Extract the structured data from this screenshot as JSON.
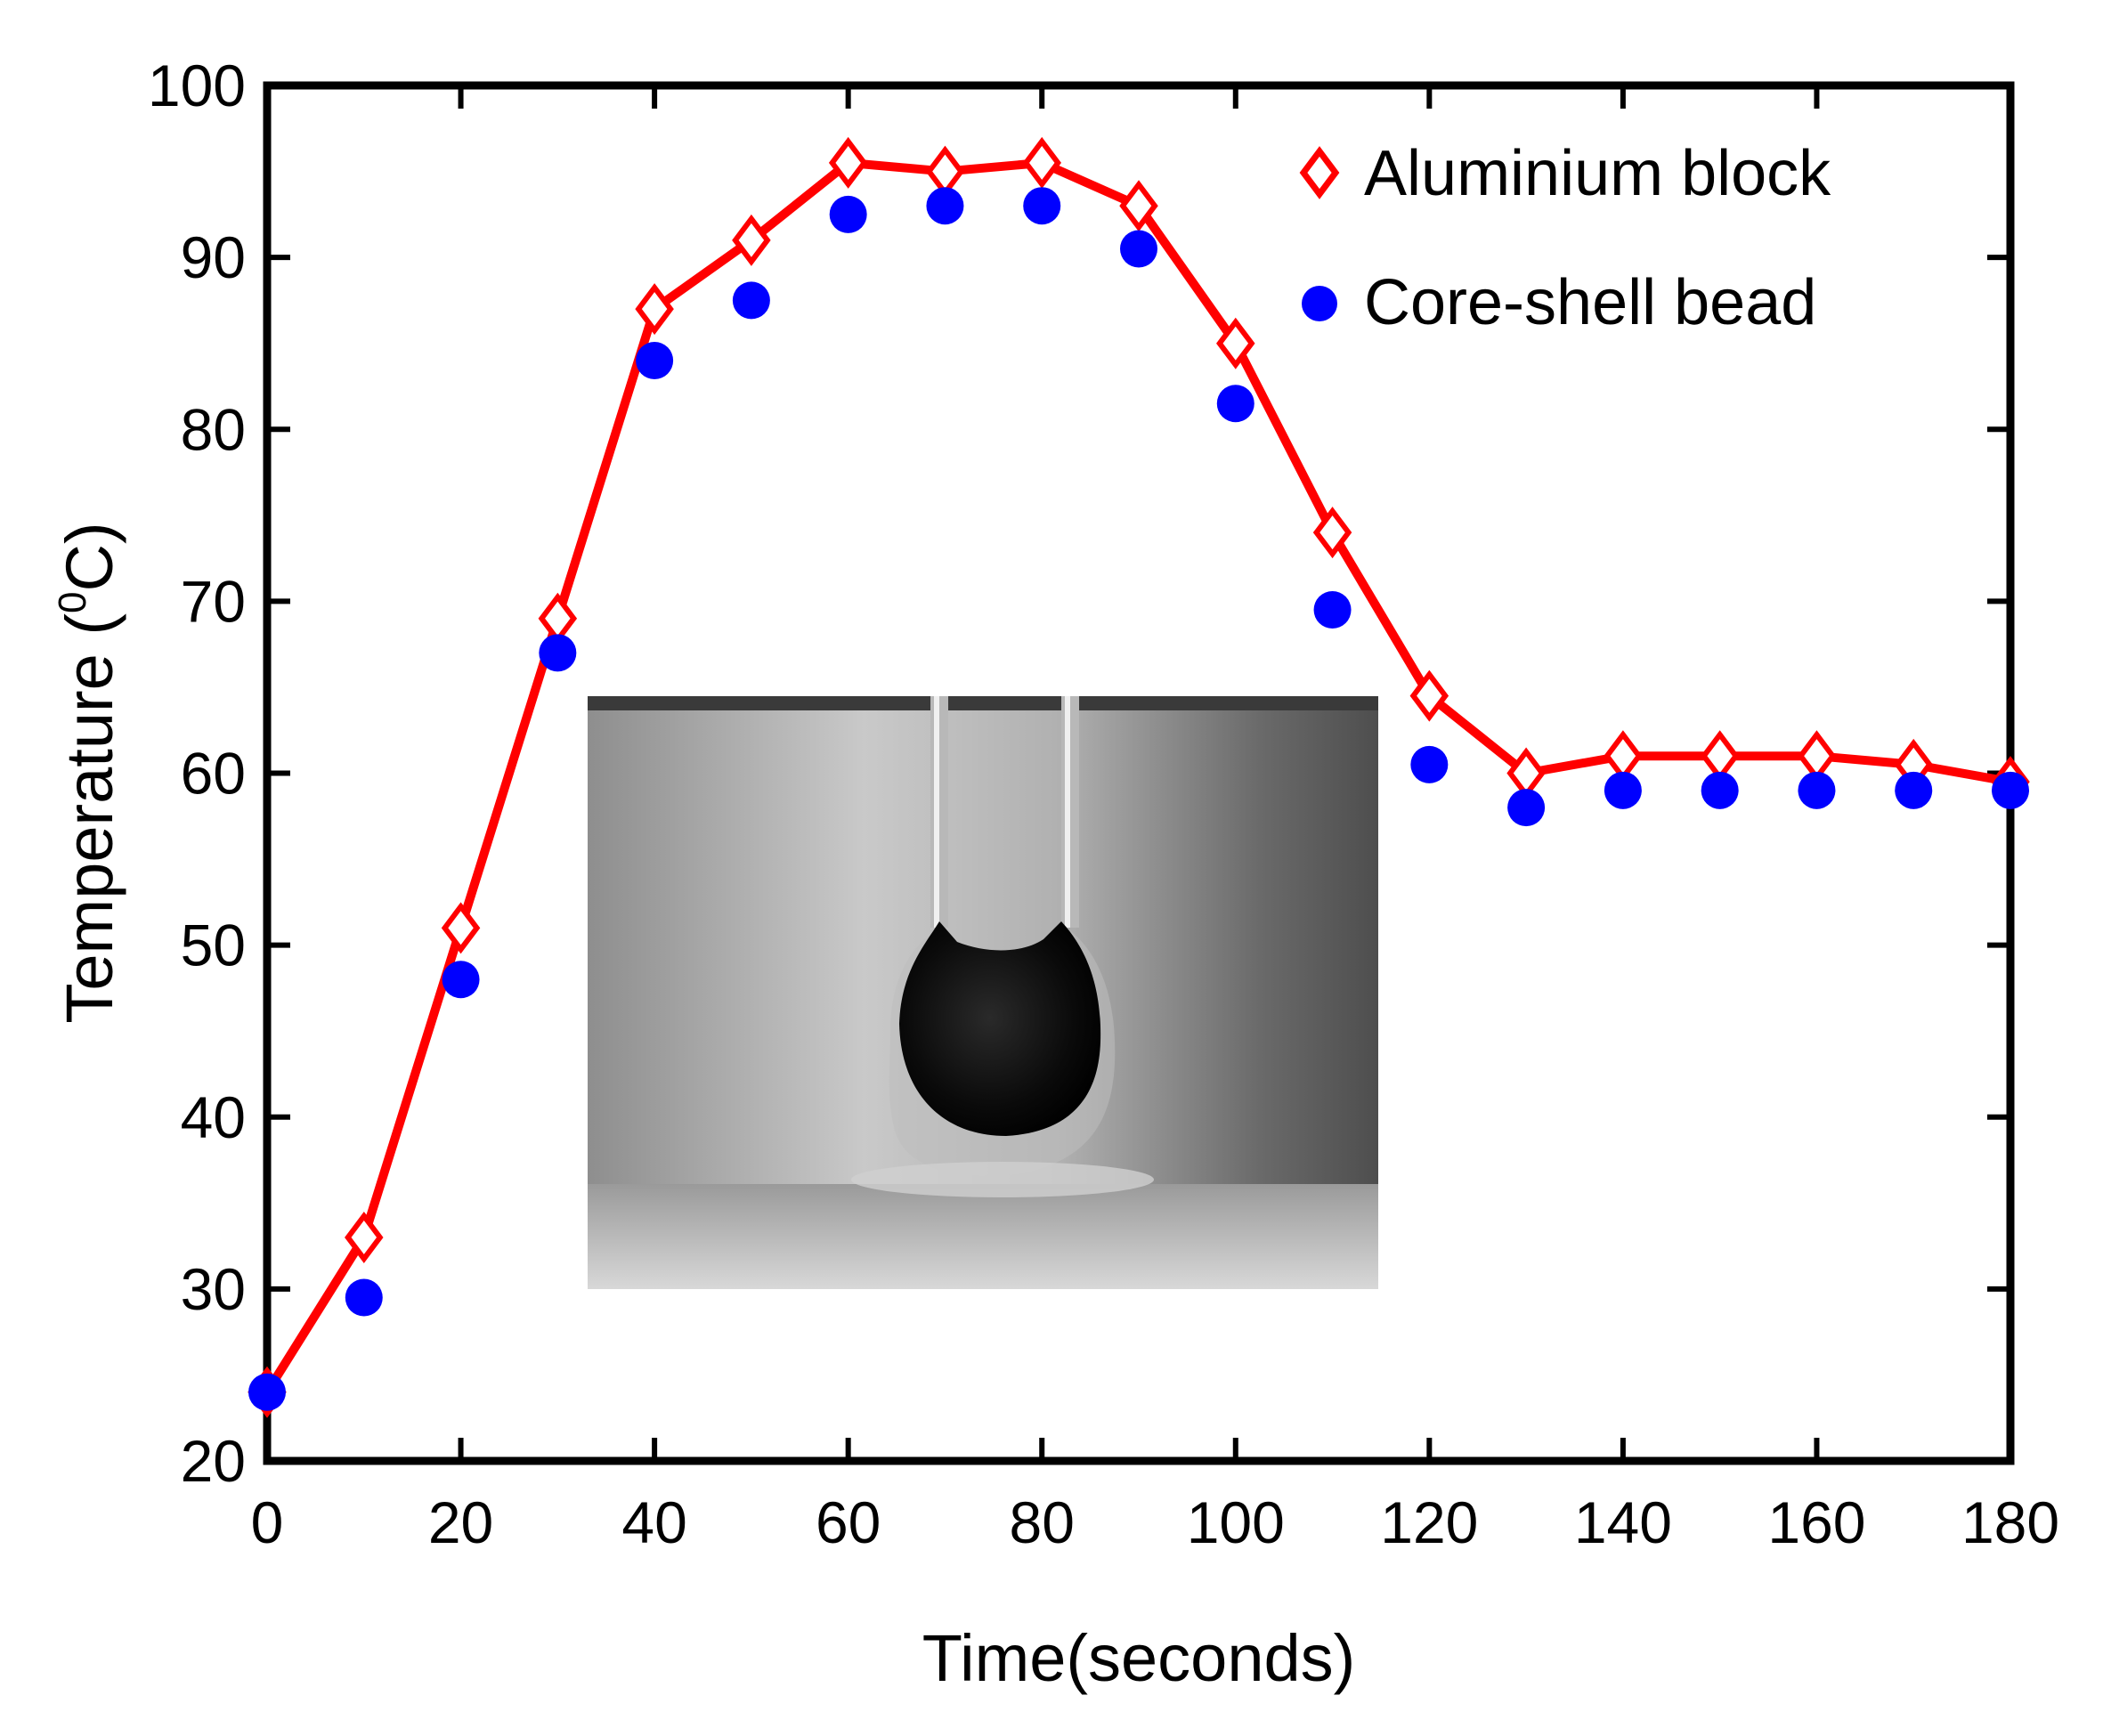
{
  "chart_data": {
    "type": "line",
    "xlabel": "Time(seconds)",
    "ylabel_main": "Temperature (",
    "ylabel_sup": "0",
    "ylabel_end": "C)",
    "xlim": [
      0,
      180
    ],
    "ylim": [
      20,
      100
    ],
    "xticks": [
      0,
      20,
      40,
      60,
      80,
      100,
      120,
      140,
      160,
      180
    ],
    "yticks": [
      20,
      30,
      40,
      50,
      60,
      70,
      80,
      90,
      100
    ],
    "grid": false,
    "legend_position": "top-right",
    "series": [
      {
        "name": "Aluminium block",
        "marker": "diamond-open",
        "line": true,
        "color": "#ff0000",
        "x": [
          0,
          10,
          20,
          30,
          40,
          50,
          60,
          70,
          80,
          90,
          100,
          110,
          120,
          130,
          140,
          150,
          160,
          170,
          180
        ],
        "values": [
          24,
          33,
          51,
          69,
          87,
          91,
          95.5,
          95,
          95.5,
          93,
          85,
          74,
          64.5,
          60,
          61,
          61,
          61,
          60.5,
          59.5
        ]
      },
      {
        "name": "Core-shell bead",
        "marker": "circle-filled",
        "line": false,
        "color": "#0000ff",
        "x": [
          0,
          10,
          20,
          30,
          40,
          50,
          60,
          70,
          80,
          90,
          100,
          110,
          120,
          130,
          140,
          150,
          160,
          170,
          180
        ],
        "values": [
          24,
          29.5,
          48,
          67,
          84,
          87.5,
          92.5,
          93,
          93,
          90.5,
          81.5,
          69.5,
          60.5,
          58,
          59,
          59,
          59,
          59,
          59
        ]
      }
    ],
    "inset": "photo-of-core-shell-bead-on-thermocouple"
  }
}
